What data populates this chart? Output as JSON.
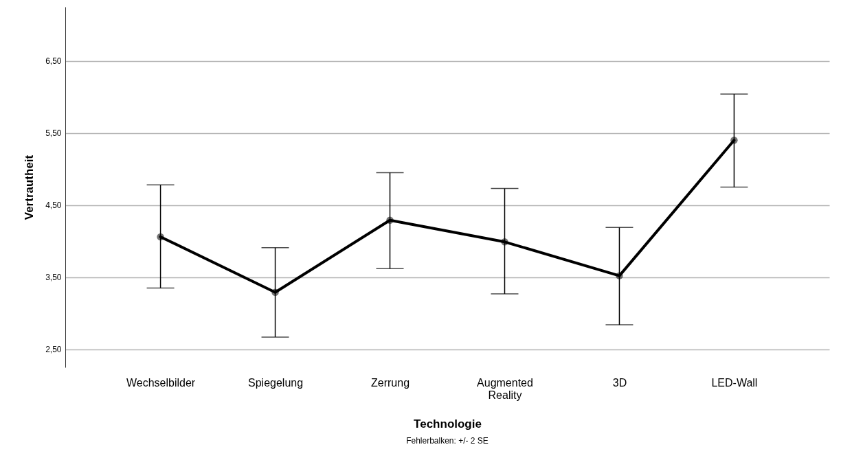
{
  "chart_data": {
    "type": "line",
    "xlabel": "Technologie",
    "ylabel": "Vertrautheit",
    "categories": [
      "Wechselbilder",
      "Spiegelung",
      "Zerrung",
      "Augmented Reality",
      "3D",
      "LED-Wall"
    ],
    "series": [
      {
        "color": "#000000",
        "values": [
          4.06,
          3.29,
          4.29,
          3.99,
          3.52,
          5.4
        ],
        "errors": [
          [
            3.35,
            4.78
          ],
          [
            2.67,
            3.91
          ],
          [
            3.62,
            4.95
          ],
          [
            3.27,
            4.73
          ],
          [
            2.84,
            4.19
          ],
          [
            4.75,
            6.04
          ]
        ]
      }
    ],
    "ylim": [
      2.25,
      7.25
    ],
    "yticks": [
      {
        "value": 2.5,
        "label": "2,50"
      },
      {
        "value": 3.5,
        "label": "3,50"
      },
      {
        "value": 4.5,
        "label": "4,50"
      },
      {
        "value": 5.5,
        "label": "5,50"
      },
      {
        "value": 6.5,
        "label": "6,50"
      }
    ],
    "grid": "y",
    "marker": "circle",
    "line_style": "solid",
    "annotations": [
      "Fehlerbalken: +/- 2 SE"
    ]
  }
}
